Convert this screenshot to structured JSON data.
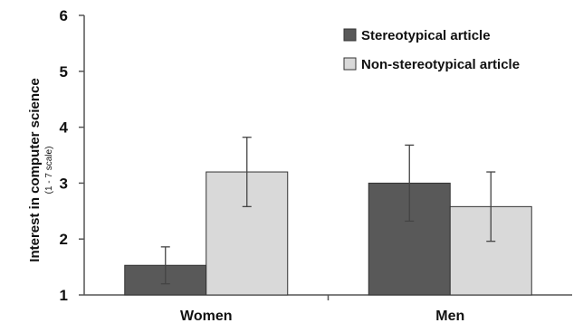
{
  "chart_data": {
    "type": "bar",
    "title": "",
    "xlabel": "",
    "ylabel": "Interest in computer science",
    "ylabel_sub": "(1 - 7 scale)",
    "categories": [
      "Women",
      "Men"
    ],
    "series": [
      {
        "name": "Stereotypical article",
        "color": "#595959",
        "values": [
          1.53,
          3.0
        ],
        "error": [
          0.33,
          0.68
        ]
      },
      {
        "name": "Non-stereotypical article",
        "color": "#d9d9d9",
        "values": [
          3.2,
          2.58
        ],
        "error": [
          0.62,
          0.62
        ]
      }
    ],
    "ylim": [
      1,
      6
    ],
    "yticks": [
      1,
      2,
      3,
      4,
      5,
      6
    ],
    "grid": false,
    "legend_position": "top-right",
    "error_bars": true
  }
}
